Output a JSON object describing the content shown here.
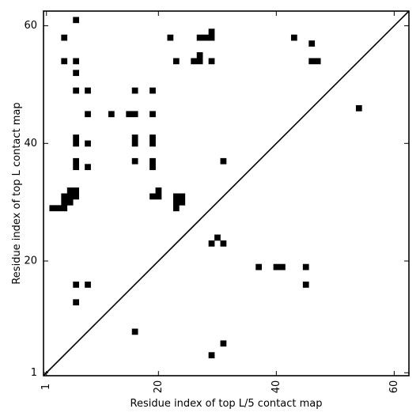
{
  "chart_data": {
    "type": "heatmap",
    "xlabel": "Residue index of top L/5 contact map",
    "ylabel": "Residue index of top L contact map",
    "xlim": [
      0.5,
      62.5
    ],
    "ylim": [
      0.5,
      62.5
    ],
    "x_ticks": [
      1,
      20,
      40,
      60
    ],
    "y_ticks": [
      1,
      20,
      40,
      60
    ],
    "x_tick_labels": [
      "1",
      "20",
      "40",
      "60"
    ],
    "y_tick_labels": [
      "1",
      "20",
      "40",
      "60"
    ],
    "diagonal": true,
    "grid": false,
    "cell_color": "#000000",
    "upper_cells": [
      [
        6,
        61
      ],
      [
        4,
        58
      ],
      [
        22,
        58
      ],
      [
        27,
        58
      ],
      [
        28,
        58
      ],
      [
        29,
        58
      ],
      [
        29,
        59
      ],
      [
        43,
        58
      ],
      [
        46,
        57
      ],
      [
        4,
        54
      ],
      [
        6,
        54
      ],
      [
        23,
        54
      ],
      [
        26,
        54
      ],
      [
        27,
        54
      ],
      [
        27,
        55
      ],
      [
        29,
        54
      ],
      [
        46,
        54
      ],
      [
        47,
        54
      ],
      [
        6,
        52
      ],
      [
        6,
        49
      ],
      [
        8,
        49
      ],
      [
        16,
        49
      ],
      [
        19,
        49
      ],
      [
        8,
        45
      ],
      [
        12,
        45
      ],
      [
        15,
        45
      ],
      [
        16,
        45
      ],
      [
        19,
        45
      ],
      [
        6,
        41
      ],
      [
        6,
        40
      ],
      [
        8,
        40
      ],
      [
        16,
        41
      ],
      [
        16,
        40
      ],
      [
        19,
        41
      ],
      [
        19,
        40
      ],
      [
        6,
        37
      ],
      [
        6,
        36
      ],
      [
        8,
        36
      ],
      [
        16,
        37
      ],
      [
        19,
        37
      ],
      [
        19,
        36
      ],
      [
        31,
        37
      ],
      [
        5,
        32
      ],
      [
        6,
        32
      ],
      [
        5,
        31
      ],
      [
        6,
        31
      ],
      [
        4,
        31
      ],
      [
        4,
        30
      ],
      [
        5,
        30
      ],
      [
        3,
        29
      ],
      [
        4,
        29
      ],
      [
        2,
        29
      ],
      [
        19,
        31
      ],
      [
        20,
        31
      ],
      [
        20,
        32
      ],
      [
        23,
        31
      ],
      [
        24,
        31
      ],
      [
        23,
        30
      ],
      [
        24,
        30
      ],
      [
        23,
        29
      ]
    ],
    "lower_cells": [
      [
        54,
        46
      ],
      [
        30,
        24
      ],
      [
        29,
        23
      ],
      [
        31,
        23
      ],
      [
        37,
        19
      ],
      [
        40,
        19
      ],
      [
        41,
        19
      ],
      [
        45,
        19
      ],
      [
        6,
        16
      ],
      [
        8,
        16
      ],
      [
        45,
        16
      ],
      [
        6,
        13
      ],
      [
        16,
        8
      ],
      [
        31,
        6
      ],
      [
        29,
        4
      ]
    ]
  }
}
